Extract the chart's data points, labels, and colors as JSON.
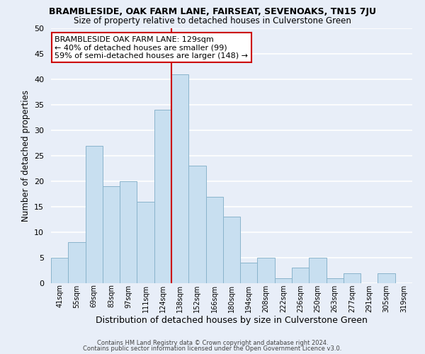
{
  "title": "BRAMBLESIDE, OAK FARM LANE, FAIRSEAT, SEVENOAKS, TN15 7JU",
  "subtitle": "Size of property relative to detached houses in Culverstone Green",
  "xlabel": "Distribution of detached houses by size in Culverstone Green",
  "ylabel": "Number of detached properties",
  "bin_labels": [
    "41sqm",
    "55sqm",
    "69sqm",
    "83sqm",
    "97sqm",
    "111sqm",
    "124sqm",
    "138sqm",
    "152sqm",
    "166sqm",
    "180sqm",
    "194sqm",
    "208sqm",
    "222sqm",
    "236sqm",
    "250sqm",
    "263sqm",
    "277sqm",
    "291sqm",
    "305sqm",
    "319sqm"
  ],
  "bar_heights": [
    5,
    8,
    27,
    19,
    20,
    16,
    34,
    41,
    23,
    17,
    13,
    4,
    5,
    1,
    3,
    5,
    1,
    2,
    0,
    2,
    0
  ],
  "bar_color": "#c8dff0",
  "bar_edge_color": "#8ab4cc",
  "vline_x_idx": 7,
  "vline_color": "#cc0000",
  "ylim": [
    0,
    50
  ],
  "yticks": [
    0,
    5,
    10,
    15,
    20,
    25,
    30,
    35,
    40,
    45,
    50
  ],
  "annotation_text": "BRAMBLESIDE OAK FARM LANE: 129sqm\n← 40% of detached houses are smaller (99)\n59% of semi-detached houses are larger (148) →",
  "annotation_box_color": "#ffffff",
  "annotation_box_edge": "#cc0000",
  "footer1": "Contains HM Land Registry data © Crown copyright and database right 2024.",
  "footer2": "Contains public sector information licensed under the Open Government Licence v3.0.",
  "background_color": "#e8eef8",
  "grid_color": "#ffffff",
  "title_fontsize": 9,
  "subtitle_fontsize": 8.5,
  "xlabel_fontsize": 9,
  "ylabel_fontsize": 8.5,
  "tick_fontsize": 8,
  "xtick_fontsize": 7,
  "ann_fontsize": 8
}
